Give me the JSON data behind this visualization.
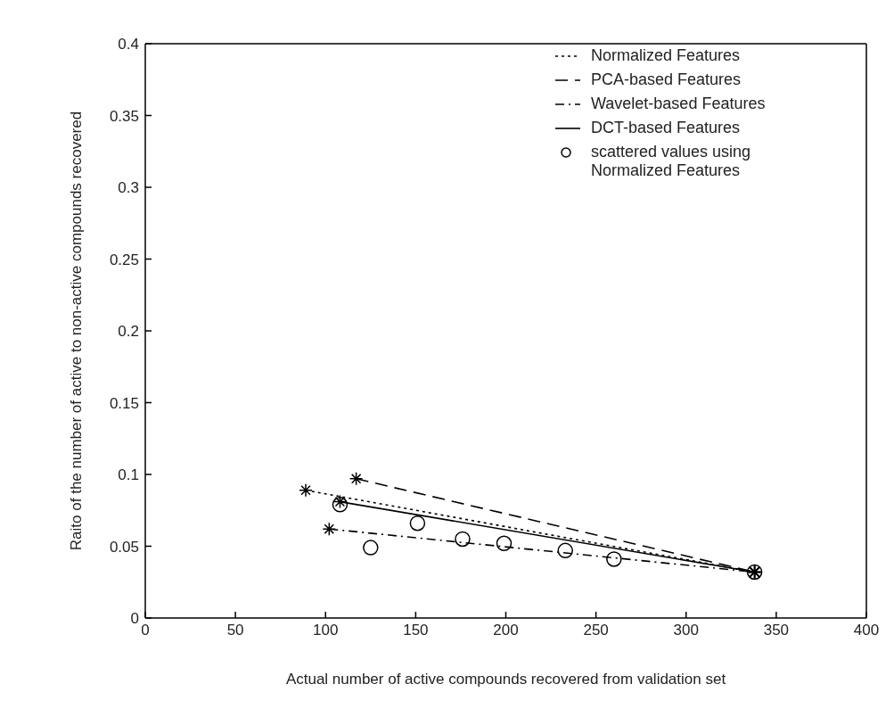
{
  "chart_data": {
    "type": "line",
    "xlabel": "Actual number of active compounds recovered from validation set",
    "ylabel": "Raito of the number of active to non-active compounds recovered",
    "xlim": [
      0,
      400
    ],
    "xticks": [
      0,
      50,
      100,
      150,
      200,
      250,
      300,
      350,
      400
    ],
    "ylim": [
      0,
      0.4
    ],
    "yticks": [
      0,
      0.05,
      0.1,
      0.15,
      0.2,
      0.25,
      0.3,
      0.35,
      0.4
    ],
    "grid": false,
    "legend": "top right",
    "series": [
      {
        "name": "Normalized Features",
        "color": "#000000",
        "line_style": "dotted",
        "marker": "cross",
        "x": [
          89,
          338
        ],
        "values": [
          0.089,
          0.032
        ]
      },
      {
        "name": "PCA-based Features",
        "color": "#000000",
        "line_style": "dashed",
        "marker": "cross",
        "x": [
          117,
          338
        ],
        "values": [
          0.097,
          0.032
        ]
      },
      {
        "name": "Wavelet-based Features",
        "color": "#000000",
        "line_style": "dashdot",
        "marker": "cross",
        "x": [
          102,
          338
        ],
        "values": [
          0.062,
          0.032
        ]
      },
      {
        "name": "DCT-based Features",
        "color": "#000000",
        "line_style": "solid",
        "marker": "cross",
        "x": [
          108,
          338
        ],
        "values": [
          0.081,
          0.032
        ]
      },
      {
        "name": "scattered values using Normalized Features",
        "type": "scatter",
        "color": "#000000",
        "marker": "circle",
        "x": [
          108,
          125,
          151,
          176,
          199,
          233,
          260,
          338
        ],
        "values": [
          0.079,
          0.049,
          0.066,
          0.055,
          0.052,
          0.047,
          0.041,
          0.032
        ]
      }
    ]
  }
}
